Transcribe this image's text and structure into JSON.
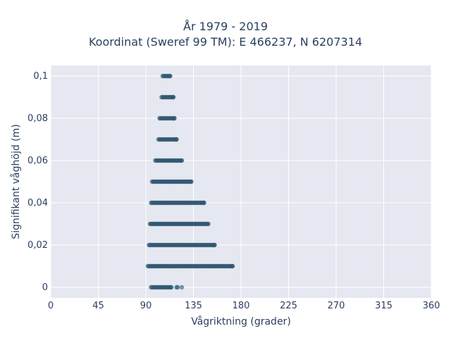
{
  "chart_data": {
    "type": "scatter",
    "title_lines": [
      "År 1979 - 2019",
      "Koordinat (Sweref 99 TM): E 466237, N 6207314"
    ],
    "xlabel": "Vågriktning (grader)",
    "ylabel": "Signifikant våghöjd (m)",
    "xlim": [
      0,
      360
    ],
    "ylim": [
      -0.005,
      0.105
    ],
    "x_ticks": [
      0,
      45,
      90,
      135,
      180,
      225,
      270,
      315,
      360
    ],
    "x_tick_labels": [
      "0",
      "45",
      "90",
      "135",
      "180",
      "225",
      "270",
      "315",
      "360"
    ],
    "y_ticks": [
      0,
      0.02,
      0.04,
      0.06,
      0.08,
      0.1
    ],
    "y_tick_labels": [
      "0",
      "0,02",
      "0,04",
      "0,06",
      "0,08",
      "0,1"
    ],
    "grid": true,
    "marker_color": "#2e5470",
    "background_color": "#e5e8f0",
    "bands": [
      {
        "y": 0.1,
        "x_min": 106,
        "x_max": 113
      },
      {
        "y": 0.09,
        "x_min": 105,
        "x_max": 116
      },
      {
        "y": 0.08,
        "x_min": 103,
        "x_max": 117
      },
      {
        "y": 0.07,
        "x_min": 102,
        "x_max": 119
      },
      {
        "y": 0.06,
        "x_min": 99,
        "x_max": 124
      },
      {
        "y": 0.05,
        "x_min": 96,
        "x_max": 133
      },
      {
        "y": 0.04,
        "x_min": 95,
        "x_max": 145
      },
      {
        "y": 0.03,
        "x_min": 94,
        "x_max": 149
      },
      {
        "y": 0.02,
        "x_min": 93,
        "x_max": 155
      },
      {
        "y": 0.01,
        "x_min": 92,
        "x_max": 172
      },
      {
        "y": 0.0,
        "x_min": 95,
        "x_max": 114
      }
    ],
    "extra_points": [
      {
        "x": 119,
        "y": 0.0
      },
      {
        "x": 120,
        "y": 0.0
      },
      {
        "x": 124,
        "y": 0.0
      }
    ]
  }
}
